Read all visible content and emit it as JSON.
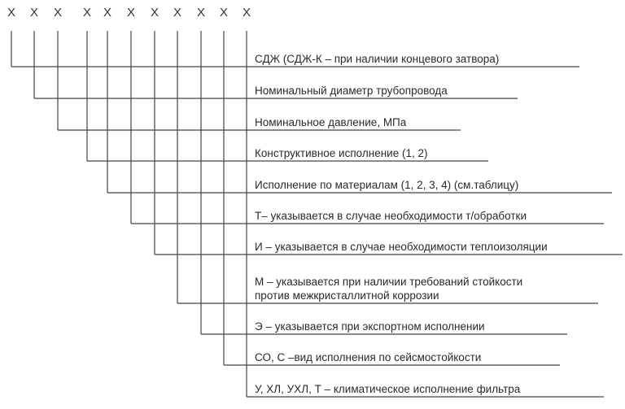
{
  "code_positions": [
    "X",
    "X",
    "X",
    "X",
    "X",
    "X",
    "X",
    "X",
    "X",
    "X",
    "X"
  ],
  "descriptions": [
    [
      "СДЖ (СДЖ-К – при наличии концевого затвора)"
    ],
    [
      "Номинальный диаметр трубопровода"
    ],
    [
      "Номинальное давление, МПа"
    ],
    [
      "Конструктивное исполнение (1, 2)"
    ],
    [
      "Исполнение по материалам (1, 2, 3, 4) (см.таблицу)"
    ],
    [
      "Т– указывается в случае необходимости т/обработки"
    ],
    [
      "И – указывается в случае необходимости теплоизоляции"
    ],
    [
      "М – указывается при наличии требований стойкости",
      "против межкристаллитной коррозии"
    ],
    [
      "Э – указывается при экспортном исполнении"
    ],
    [
      "СО, С –вид исполнения по сейсмостойкости"
    ],
    [
      "У, ХЛ, УХЛ, Т – климатическое исполнение фильтра"
    ]
  ]
}
